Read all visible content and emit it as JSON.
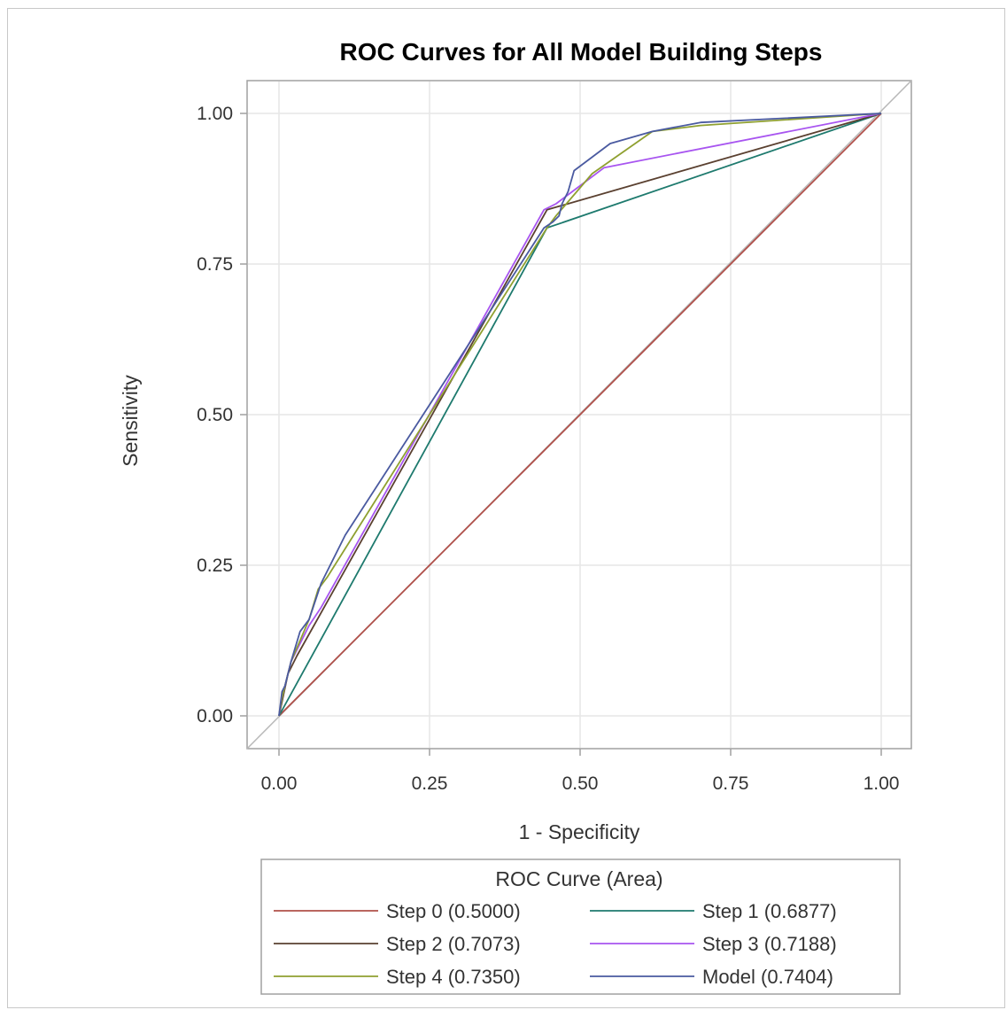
{
  "chart_data": {
    "type": "line",
    "title": "ROC Curves for All Model Building Steps",
    "xlabel": "1 - Specificity",
    "ylabel": "Sensitivity",
    "xlim": [
      0,
      1
    ],
    "ylim": [
      0,
      1
    ],
    "xticks": [
      "0.00",
      "0.25",
      "0.50",
      "0.75",
      "1.00"
    ],
    "yticks": [
      "0.00",
      "0.25",
      "0.50",
      "0.75",
      "1.00"
    ],
    "grid": true,
    "diagonal_reference": true,
    "legend": {
      "title": "ROC Curve (Area)",
      "placement": "bottom"
    },
    "series": [
      {
        "name": "Step 0",
        "area": "(0.5000)",
        "color": "#b0504a",
        "x": [
          0,
          1
        ],
        "y": [
          0,
          1
        ]
      },
      {
        "name": "Step 1",
        "area": "(0.6877)",
        "color": "#1e7a6e",
        "x": [
          0,
          0.445,
          1
        ],
        "y": [
          0,
          0.81,
          1
        ]
      },
      {
        "name": "Step 2",
        "area": "(0.7073)",
        "color": "#5a4030",
        "x": [
          0,
          0.015,
          0.03,
          0.445,
          1
        ],
        "y": [
          0,
          0.07,
          0.1,
          0.84,
          1
        ]
      },
      {
        "name": "Step 3",
        "area": "(0.7188)",
        "color": "#a855f0",
        "x": [
          0,
          0.005,
          0.02,
          0.04,
          0.05,
          0.07,
          0.44,
          0.46,
          0.5,
          0.54,
          1
        ],
        "y": [
          0,
          0.03,
          0.09,
          0.13,
          0.15,
          0.18,
          0.84,
          0.85,
          0.88,
          0.91,
          1
        ]
      },
      {
        "name": "Step 4",
        "area": "(0.7350)",
        "color": "#8fa030",
        "x": [
          0,
          0.005,
          0.02,
          0.05,
          0.065,
          0.08,
          0.445,
          0.46,
          0.52,
          0.62,
          0.7,
          1
        ],
        "y": [
          0,
          0.03,
          0.09,
          0.16,
          0.21,
          0.23,
          0.81,
          0.83,
          0.9,
          0.97,
          0.98,
          1
        ]
      },
      {
        "name": "Model",
        "area": "(0.7404)",
        "color": "#4a5aa0",
        "x": [
          0,
          0.005,
          0.01,
          0.02,
          0.035,
          0.05,
          0.07,
          0.09,
          0.1,
          0.11,
          0.44,
          0.455,
          0.465,
          0.47,
          0.48,
          0.49,
          0.55,
          0.62,
          0.7,
          1
        ],
        "y": [
          0,
          0.04,
          0.05,
          0.09,
          0.14,
          0.16,
          0.22,
          0.26,
          0.28,
          0.3,
          0.81,
          0.82,
          0.83,
          0.85,
          0.87,
          0.905,
          0.95,
          0.97,
          0.985,
          1
        ]
      }
    ]
  }
}
